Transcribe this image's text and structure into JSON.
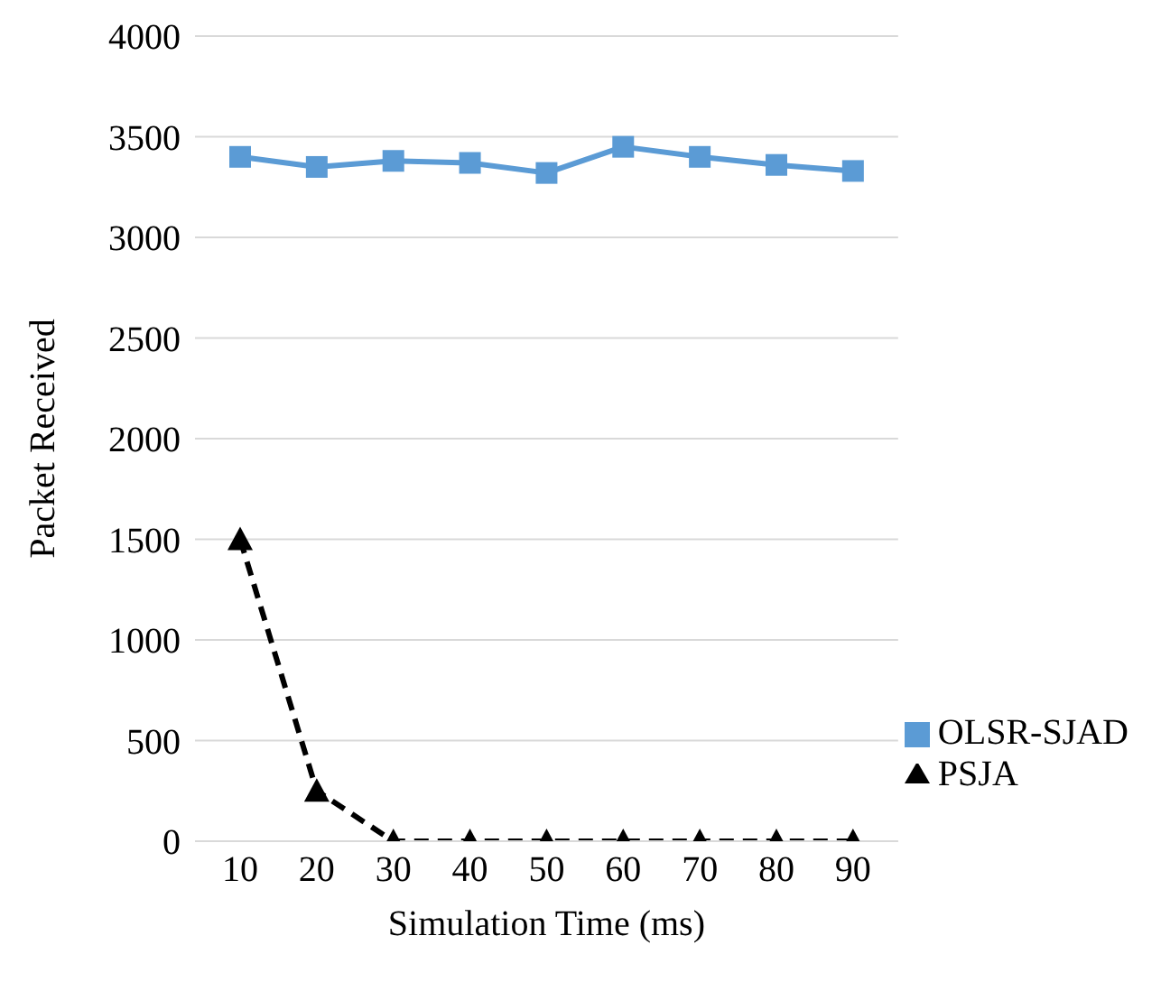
{
  "chart_data": {
    "type": "line",
    "xlabel": "Simulation Time (ms)",
    "ylabel": "Packet Received",
    "categories": [
      "10",
      "20",
      "30",
      "40",
      "50",
      "60",
      "70",
      "80",
      "90"
    ],
    "series": [
      {
        "name": "OLSR-SJAD",
        "color": "#5b9bd5",
        "marker": "square",
        "line_style": "solid",
        "values": [
          3400,
          3350,
          3380,
          3370,
          3320,
          3450,
          3400,
          3360,
          3330
        ]
      },
      {
        "name": "PSJA",
        "color": "#000000",
        "marker": "triangle",
        "line_style": "dashed",
        "values": [
          1500,
          250,
          0,
          0,
          0,
          0,
          0,
          0,
          0
        ]
      }
    ],
    "ylim": [
      0,
      4000
    ],
    "yticks": [
      0,
      500,
      1000,
      1500,
      2000,
      2500,
      3000,
      3500,
      4000
    ],
    "grid": "y",
    "legend": "bottom right"
  }
}
